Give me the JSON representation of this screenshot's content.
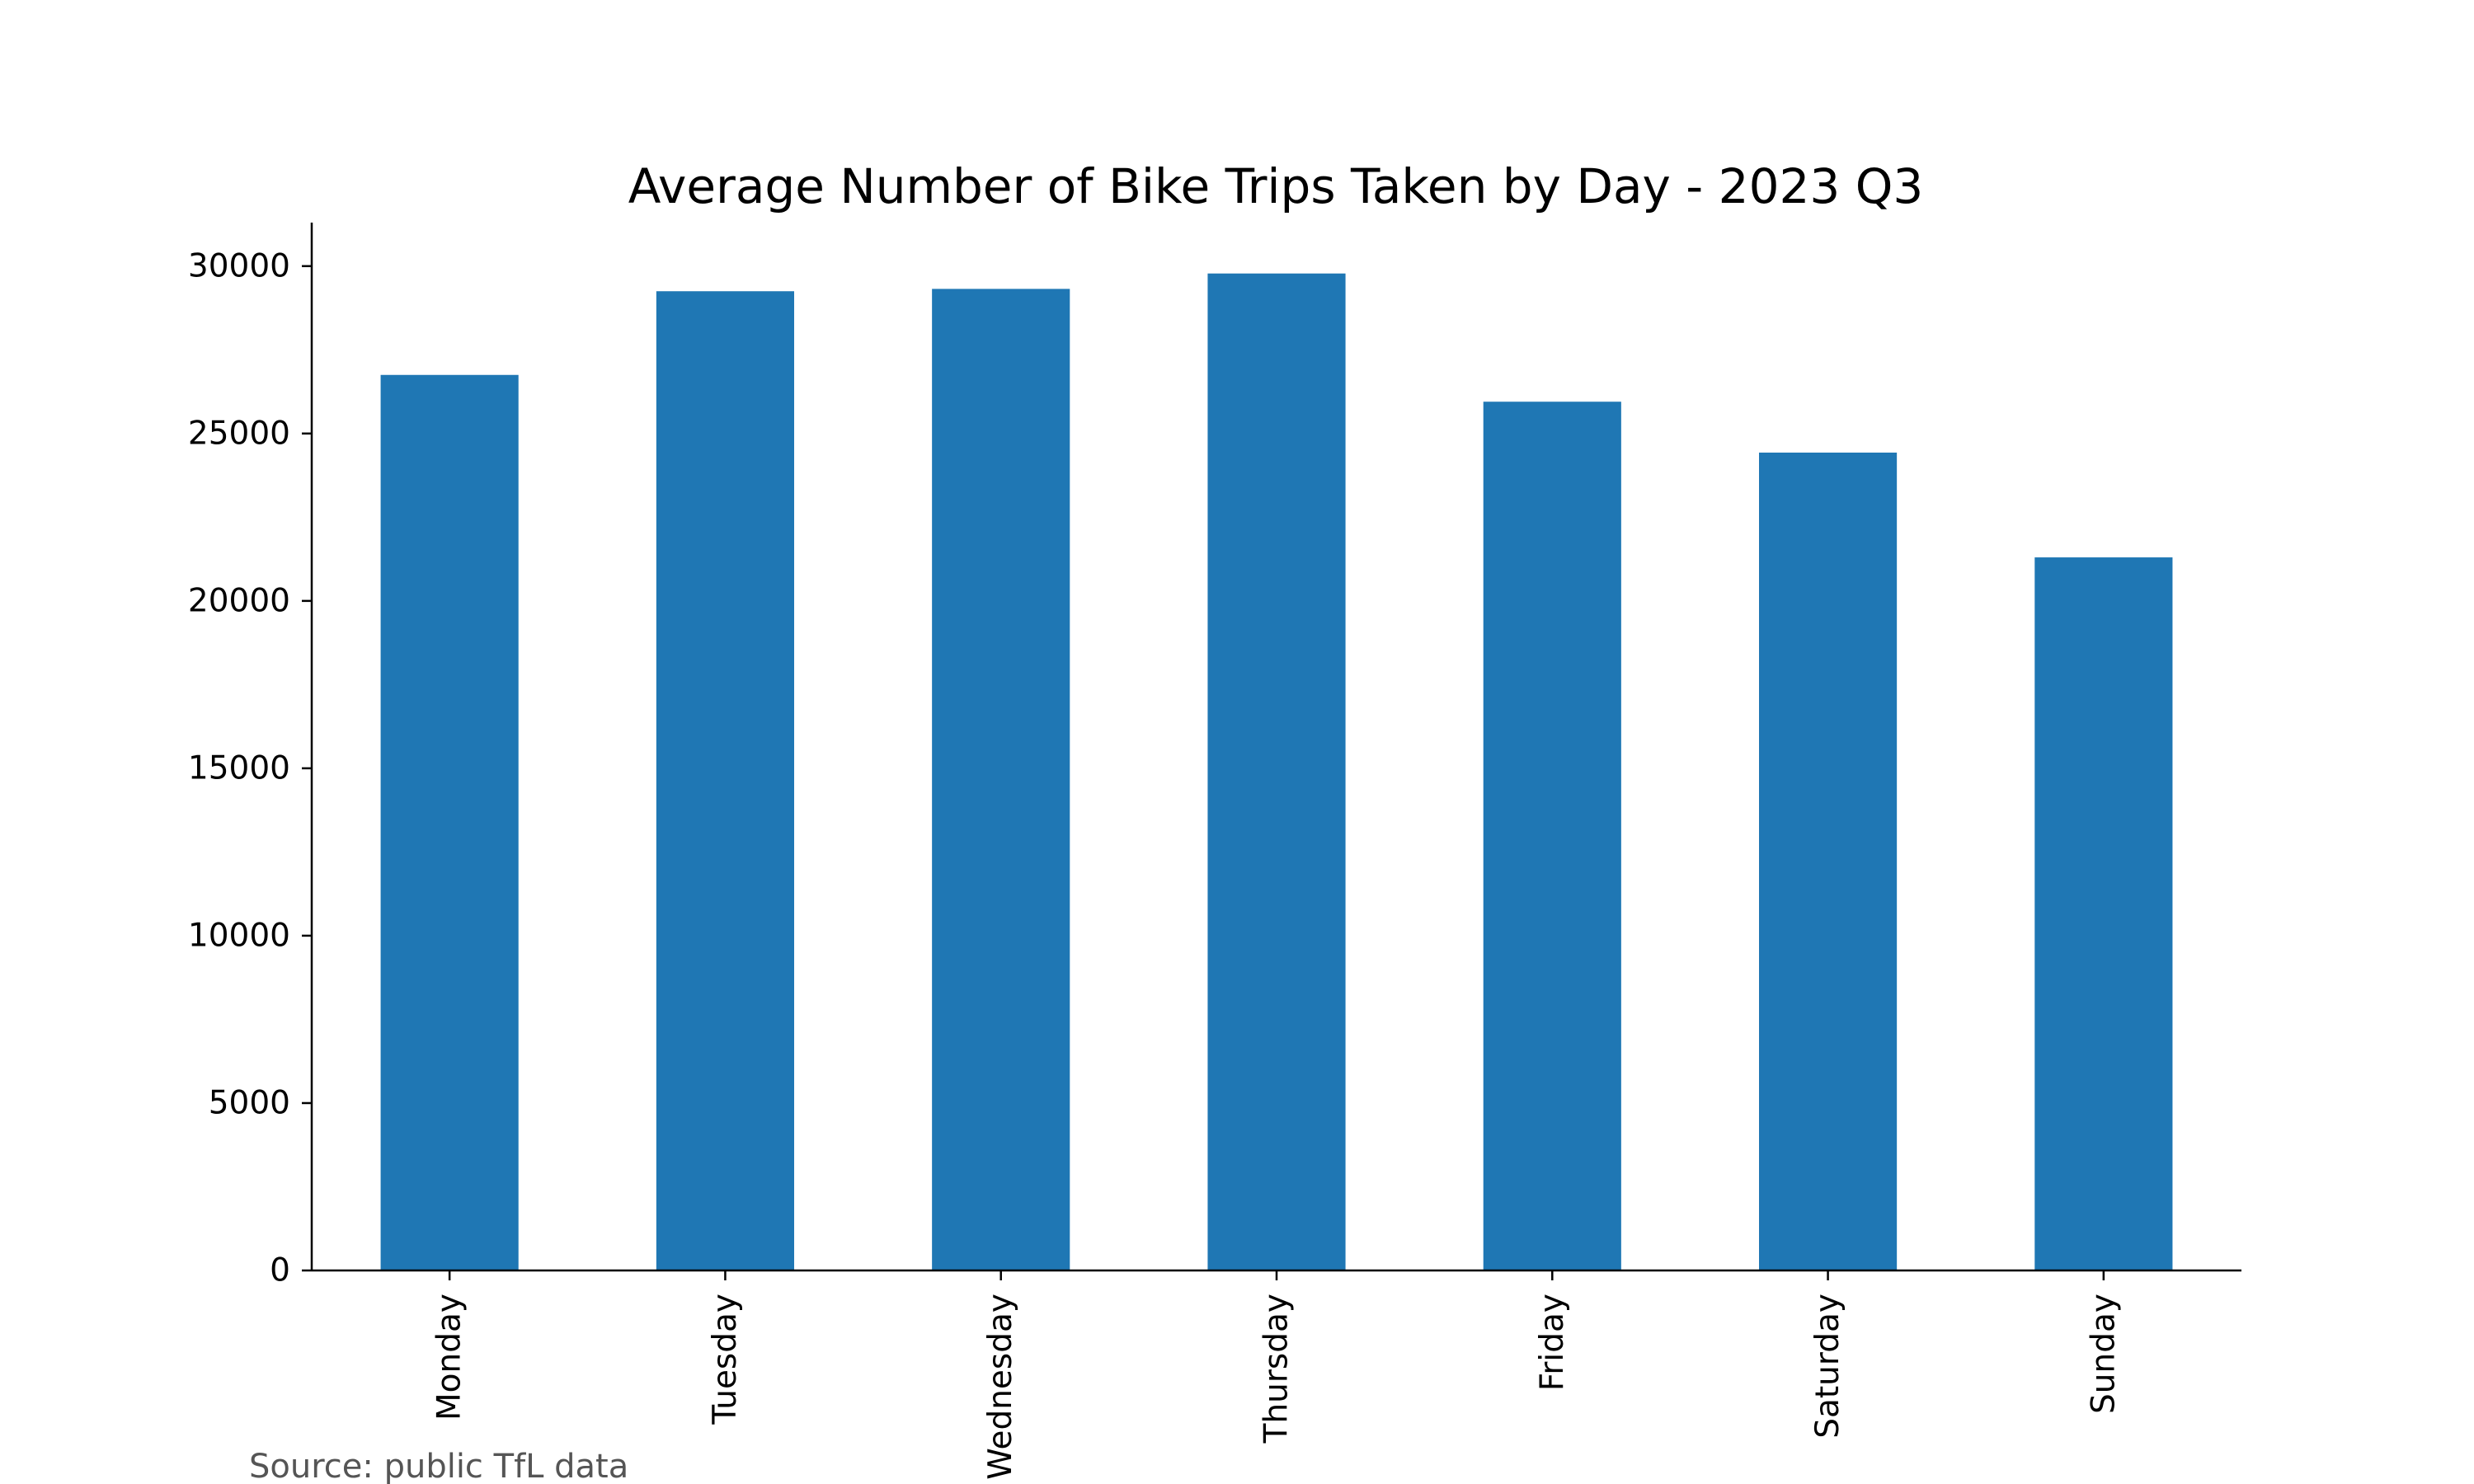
{
  "chart_data": {
    "type": "bar",
    "title": "Average Number of Bike Trips Taken by Day - 2023 Q3",
    "xlabel": "",
    "ylabel": "",
    "categories": [
      "Monday",
      "Tuesday",
      "Wednesday",
      "Thursday",
      "Friday",
      "Saturday",
      "Sunday"
    ],
    "values": [
      26750,
      29250,
      29320,
      29780,
      25950,
      24430,
      21300
    ],
    "ylim": [
      0,
      31300
    ],
    "yticks": [
      0,
      5000,
      10000,
      15000,
      20000,
      25000,
      30000
    ],
    "bar_color": "#1f77b4",
    "grid": false,
    "legend": "none",
    "x_tick_rotation": "vertical"
  },
  "source_note": "Source: public TfL data"
}
